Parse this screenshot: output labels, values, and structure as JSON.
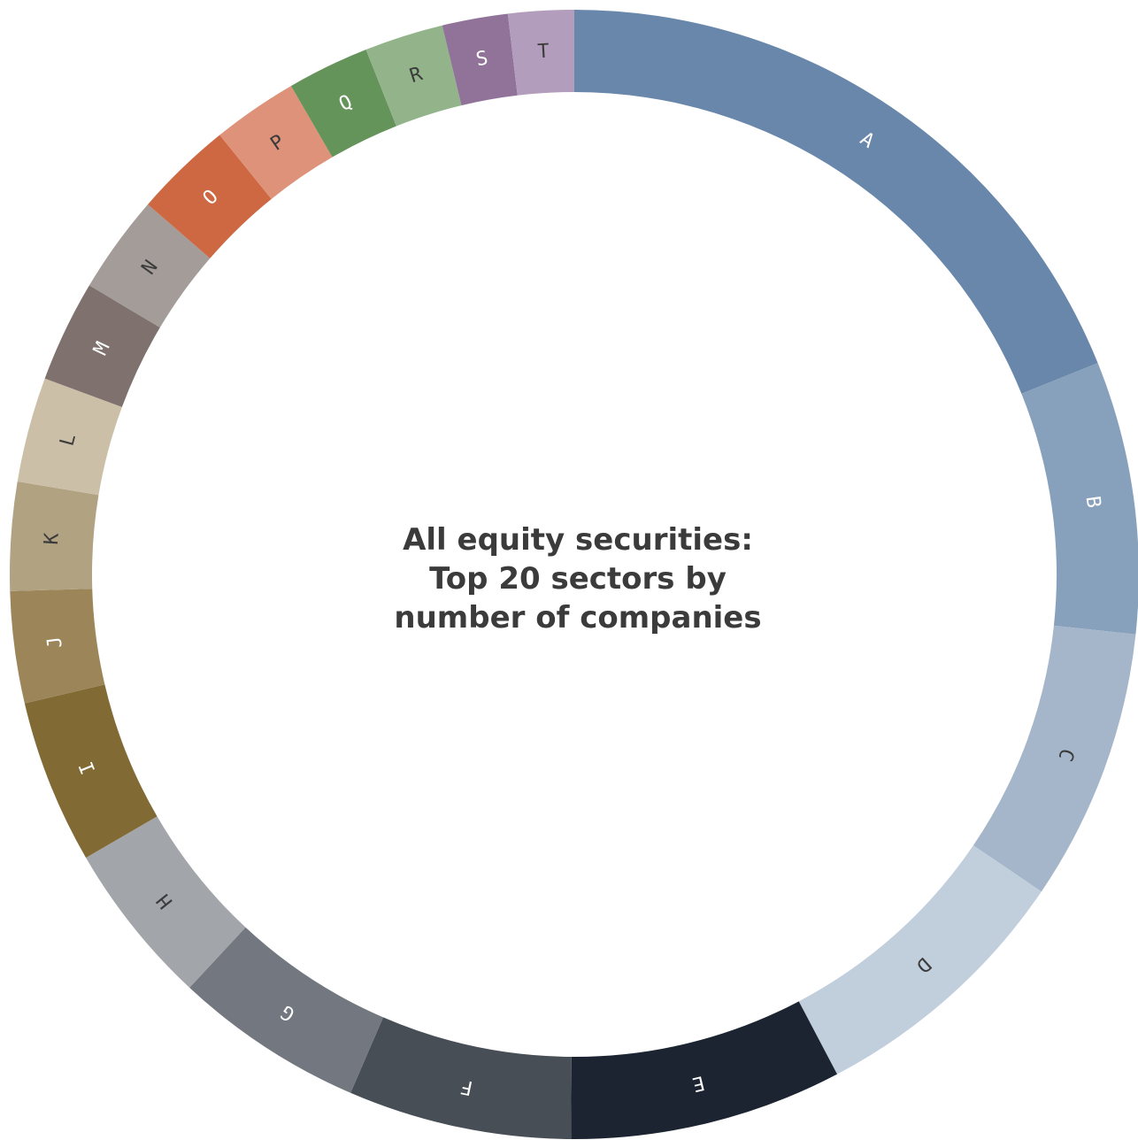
{
  "chart_data": {
    "type": "pie",
    "title_lines": [
      "All equity securities:",
      "Top 20 sectors by",
      "number of companies"
    ],
    "categories": [
      "A",
      "B",
      "C",
      "D",
      "E",
      "F",
      "G",
      "H",
      "I",
      "J",
      "K",
      "L",
      "M",
      "N",
      "O",
      "P",
      "Q",
      "R",
      "S",
      "T"
    ],
    "values": [
      20.1,
      8.3,
      8.3,
      8.3,
      8.3,
      6.8,
      5.8,
      5.0,
      5.0,
      3.4,
      3.3,
      3.2,
      3.1,
      3.0,
      3.0,
      2.6,
      2.5,
      2.4,
      2.0,
      2.0
    ],
    "colors": [
      "#6887aa",
      "#87a0bb",
      "#a5b6ca",
      "#c1cedc",
      "#1b2430",
      "#474e56",
      "#737880",
      "#a2a5aa",
      "#826a34",
      "#9c8659",
      "#b1a282",
      "#cbbfa8",
      "#7e716e",
      "#a49c99",
      "#cd6842",
      "#df927a",
      "#649459",
      "#93b48b",
      "#917399",
      "#b39dbc"
    ],
    "label_colors": [
      "#ffffff",
      "#ffffff",
      "#3b3b3b",
      "#3b3b3b",
      "#ffffff",
      "#ffffff",
      "#ffffff",
      "#3b3b3b",
      "#ffffff",
      "#ffffff",
      "#3b3b3b",
      "#3b3b3b",
      "#ffffff",
      "#3b3b3b",
      "#ffffff",
      "#3b3b3b",
      "#ffffff",
      "#3b3b3b",
      "#ffffff",
      "#3b3b3b"
    ],
    "start_angle_deg": 0,
    "direction": "clockwise",
    "legend": "none"
  }
}
